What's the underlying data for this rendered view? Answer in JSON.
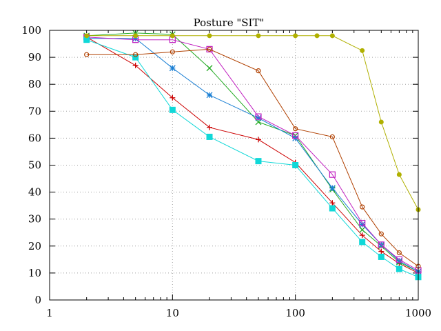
{
  "chart_data": {
    "type": "line",
    "title": "Posture \"SIT\"",
    "xlabel": "",
    "ylabel": "",
    "xscale": "log",
    "xlim": [
      1,
      1000
    ],
    "ylim": [
      0,
      100
    ],
    "grid": true,
    "x_ticks": [
      {
        "value": 1,
        "label": "1"
      },
      {
        "value": 10,
        "label": "10"
      },
      {
        "value": 100,
        "label": "100"
      },
      {
        "value": 1000,
        "label": "1000"
      }
    ],
    "y_ticks": [
      {
        "value": 0,
        "label": "0"
      },
      {
        "value": 10,
        "label": "10"
      },
      {
        "value": 20,
        "label": "20"
      },
      {
        "value": 30,
        "label": "30"
      },
      {
        "value": 40,
        "label": "40"
      },
      {
        "value": 50,
        "label": "50"
      },
      {
        "value": 60,
        "label": "60"
      },
      {
        "value": 70,
        "label": "70"
      },
      {
        "value": 80,
        "label": "80"
      },
      {
        "value": 90,
        "label": "90"
      },
      {
        "value": 100,
        "label": "100"
      }
    ],
    "series": [
      {
        "name": "series-red-plus",
        "color": "#cc0000",
        "marker": "plus",
        "x": [
          2,
          5,
          10,
          20,
          50,
          100,
          200,
          350,
          500,
          700,
          1000
        ],
        "y": [
          97.5,
          87,
          75,
          64,
          59.5,
          51,
          36,
          24,
          18,
          13.5,
          10
        ]
      },
      {
        "name": "series-green-x",
        "color": "#22aa22",
        "marker": "x",
        "x": [
          2,
          5,
          10,
          20,
          50,
          100,
          200,
          350,
          500,
          700,
          1000
        ],
        "y": [
          98,
          99,
          98.5,
          86,
          66,
          61,
          41,
          26,
          20,
          14,
          10.5
        ]
      },
      {
        "name": "series-blue-star",
        "color": "#1a7fd4",
        "marker": "star",
        "x": [
          2,
          5,
          10,
          20,
          50,
          100,
          200,
          350,
          500,
          700,
          1000
        ],
        "y": [
          97,
          97,
          86,
          76,
          67.5,
          60,
          41.5,
          28,
          20.5,
          14.5,
          10.5
        ]
      },
      {
        "name": "series-purple-square",
        "color": "#c020c0",
        "marker": "open-square",
        "x": [
          2,
          5,
          10,
          20,
          50,
          100,
          200,
          350,
          500,
          700,
          1000
        ],
        "y": [
          97.5,
          96.5,
          96.5,
          93,
          68,
          61,
          46.5,
          28.5,
          20.5,
          15,
          11
        ]
      },
      {
        "name": "series-cyan-filled-square",
        "color": "#10d8d8",
        "marker": "filled-square",
        "x": [
          2,
          5,
          10,
          20,
          50,
          100,
          200,
          350,
          500,
          700,
          1000
        ],
        "y": [
          96.5,
          90,
          70.5,
          60.5,
          51.5,
          50,
          34,
          21.5,
          16,
          11.5,
          8.5
        ]
      },
      {
        "name": "series-olive-filled-circle",
        "color": "#b0b000",
        "marker": "filled-circle",
        "x": [
          2,
          5,
          10,
          20,
          50,
          100,
          150,
          200,
          350,
          500,
          700,
          1000
        ],
        "y": [
          98,
          98,
          98,
          98,
          98,
          98,
          98,
          98,
          92.5,
          66,
          46.5,
          33.5
        ]
      },
      {
        "name": "series-brown-open-circle",
        "color": "#b04000",
        "marker": "open-circle",
        "x": [
          2,
          5,
          10,
          20,
          50,
          100,
          200,
          350,
          500,
          700,
          1000
        ],
        "y": [
          91,
          91,
          92,
          93,
          85,
          63.5,
          60.5,
          34.5,
          24.5,
          17.5,
          12.5
        ]
      }
    ]
  }
}
